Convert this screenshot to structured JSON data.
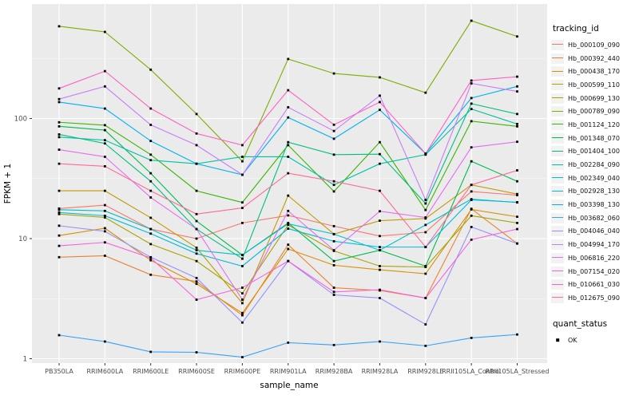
{
  "chart_data": {
    "type": "line",
    "title": "",
    "xlabel": "sample_name",
    "ylabel": "FPKM + 1",
    "x_categories": [
      "PB350LA",
      "RRIM600LA",
      "RRIM600LE",
      "RRIM600SE",
      "RRIM600PE",
      "RRIM901LA",
      "RRIM928BA",
      "RRIM928LA",
      "RRIM928LE",
      "RRII105LA_Control",
      "RRII105LA_Stressed"
    ],
    "y_scale": "log10",
    "y_ticks": [
      1,
      10,
      100
    ],
    "y_minor_ticks": [
      3.162,
      31.62,
      316.2
    ],
    "ylim": [
      0.92,
      900
    ],
    "grid": true,
    "legend_position": "right",
    "legend_title": "tracking_id",
    "series": [
      {
        "name": "Hb_000109_090",
        "color": "#F8766D",
        "values": [
          17.8,
          19,
          12,
          10,
          13.5,
          15.6,
          12.7,
          10.5,
          11.3,
          24.7,
          23
        ]
      },
      {
        "name": "Hb_000392_440",
        "color": "#EA8331",
        "values": [
          7.0,
          7.2,
          5.0,
          4.4,
          2.3,
          8.9,
          3.9,
          3.7,
          3.2,
          17.7,
          9.1
        ]
      },
      {
        "name": "Hb_000438_170",
        "color": "#D89000",
        "values": [
          10.6,
          12.2,
          6.6,
          4.2,
          2.4,
          8.2,
          6.0,
          5.5,
          5.1,
          17.5,
          15.2
        ]
      },
      {
        "name": "Hb_000599_110",
        "color": "#C09B00",
        "values": [
          25,
          25,
          14.9,
          8.4,
          2.9,
          22.8,
          10.9,
          14.1,
          14.7,
          28,
          23.5
        ]
      },
      {
        "name": "Hb_000699_130",
        "color": "#A3A500",
        "values": [
          16,
          15,
          9,
          6.5,
          3.5,
          13,
          7.9,
          5.9,
          5.8,
          15.5,
          13.5
        ]
      },
      {
        "name": "Hb_000789_090",
        "color": "#7CAE00",
        "values": [
          586,
          526,
          255,
          109,
          44,
          313,
          237,
          220,
          164,
          652,
          482
        ]
      },
      {
        "name": "Hb_001124_120",
        "color": "#39B600",
        "values": [
          93,
          88,
          50,
          25,
          20,
          60,
          24.7,
          63.5,
          17.3,
          95,
          86
        ]
      },
      {
        "name": "Hb_001348_070",
        "color": "#00BB4E",
        "values": [
          86,
          80,
          35,
          14,
          7.3,
          13.5,
          6.5,
          8.0,
          5.9,
          44,
          30
        ]
      },
      {
        "name": "Hb_001404_100",
        "color": "#00BF7D",
        "values": [
          73.7,
          62,
          30,
          12,
          6.8,
          63.5,
          50,
          50.5,
          19.6,
          133,
          109
        ]
      },
      {
        "name": "Hb_002284_090",
        "color": "#00C1A3",
        "values": [
          70,
          66,
          45,
          42,
          48,
          48,
          28,
          42,
          50,
          120,
          90
        ]
      },
      {
        "name": "Hb_002349_040",
        "color": "#00BFC4",
        "values": [
          17.4,
          17,
          12,
          8.0,
          7.3,
          13.3,
          10.9,
          8.0,
          13,
          21.3,
          20
        ]
      },
      {
        "name": "Hb_002928_130",
        "color": "#00BAE0",
        "values": [
          16.5,
          15.5,
          11,
          7.5,
          5.9,
          12.1,
          9.5,
          8.5,
          8.5,
          21,
          20.1
        ]
      },
      {
        "name": "Hb_003398_130",
        "color": "#00B0F6",
        "values": [
          137,
          121,
          65,
          42,
          34,
          102,
          67.8,
          118,
          51,
          148,
          185
        ]
      },
      {
        "name": "Hb_003682_060",
        "color": "#35A2FF",
        "values": [
          1.57,
          1.39,
          1.14,
          1.13,
          1.03,
          1.36,
          1.3,
          1.39,
          1.28,
          1.49,
          1.59
        ]
      },
      {
        "name": "Hb_004046_040",
        "color": "#9590FF",
        "values": [
          12.8,
          11.5,
          7.0,
          4.7,
          2.0,
          6.5,
          3.4,
          3.2,
          1.93,
          12.5,
          9.1
        ]
      },
      {
        "name": "Hb_004994_170",
        "color": "#C77CFF",
        "values": [
          145,
          185,
          88.5,
          60,
          34,
          124,
          78.7,
          155,
          21,
          196,
          168
        ]
      },
      {
        "name": "Hb_006816_220",
        "color": "#E76BF3",
        "values": [
          55,
          48,
          22,
          12,
          3.1,
          17,
          8,
          16.9,
          15,
          57.5,
          64
        ]
      },
      {
        "name": "Hb_007154_020",
        "color": "#FA62DB",
        "values": [
          8.7,
          9.3,
          6.9,
          3.1,
          3.9,
          6.5,
          3.6,
          3.75,
          3.2,
          9.8,
          12
        ]
      },
      {
        "name": "Hb_010661_030",
        "color": "#FF61C3",
        "values": [
          178,
          248,
          121,
          75,
          60,
          172,
          88.7,
          137,
          51,
          207,
          223
        ]
      },
      {
        "name": "Hb_012675_090",
        "color": "#FF6A98",
        "values": [
          42,
          40,
          25,
          16,
          18,
          35,
          30,
          25,
          8.5,
          28,
          37
        ]
      }
    ],
    "quant_legend": {
      "title": "quant_status",
      "items": [
        {
          "label": "OK",
          "marker": "black-square"
        }
      ]
    },
    "colors": {
      "panel_background": "#EBEBEB",
      "grid_major": "#FFFFFF",
      "grid_minor": "#F7F7F7",
      "tick_text": "#4D4D4D",
      "marker": "#000000"
    }
  }
}
